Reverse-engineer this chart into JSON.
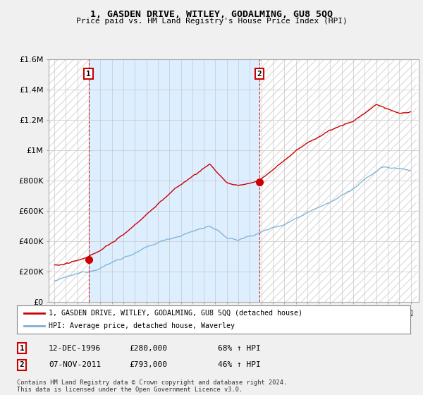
{
  "title": "1, GASDEN DRIVE, WITLEY, GODALMING, GU8 5QQ",
  "subtitle": "Price paid vs. HM Land Registry's House Price Index (HPI)",
  "legend_line1": "1, GASDEN DRIVE, WITLEY, GODALMING, GU8 5QQ (detached house)",
  "legend_line2": "HPI: Average price, detached house, Waverley",
  "table": [
    {
      "num": "1",
      "date": "12-DEC-1996",
      "price": "£280,000",
      "change": "68% ↑ HPI"
    },
    {
      "num": "2",
      "date": "07-NOV-2011",
      "price": "£793,000",
      "change": "46% ↑ HPI"
    }
  ],
  "footer": "Contains HM Land Registry data © Crown copyright and database right 2024.\nThis data is licensed under the Open Government Licence v3.0.",
  "red_color": "#cc0000",
  "blue_color": "#7ab0d4",
  "dashed_red": "#cc0000",
  "background_color": "#f0f0f0",
  "plot_bg": "#ffffff",
  "shade_color": "#ddeeff",
  "ylim": [
    0,
    1600000
  ],
  "yticks": [
    0,
    200000,
    400000,
    600000,
    800000,
    1000000,
    1200000,
    1400000,
    1600000
  ],
  "sale1_year": 1996.97,
  "sale1_price": 280000,
  "sale2_year": 2011.85,
  "sale2_price": 793000,
  "xstart": 1994,
  "xend": 2025
}
